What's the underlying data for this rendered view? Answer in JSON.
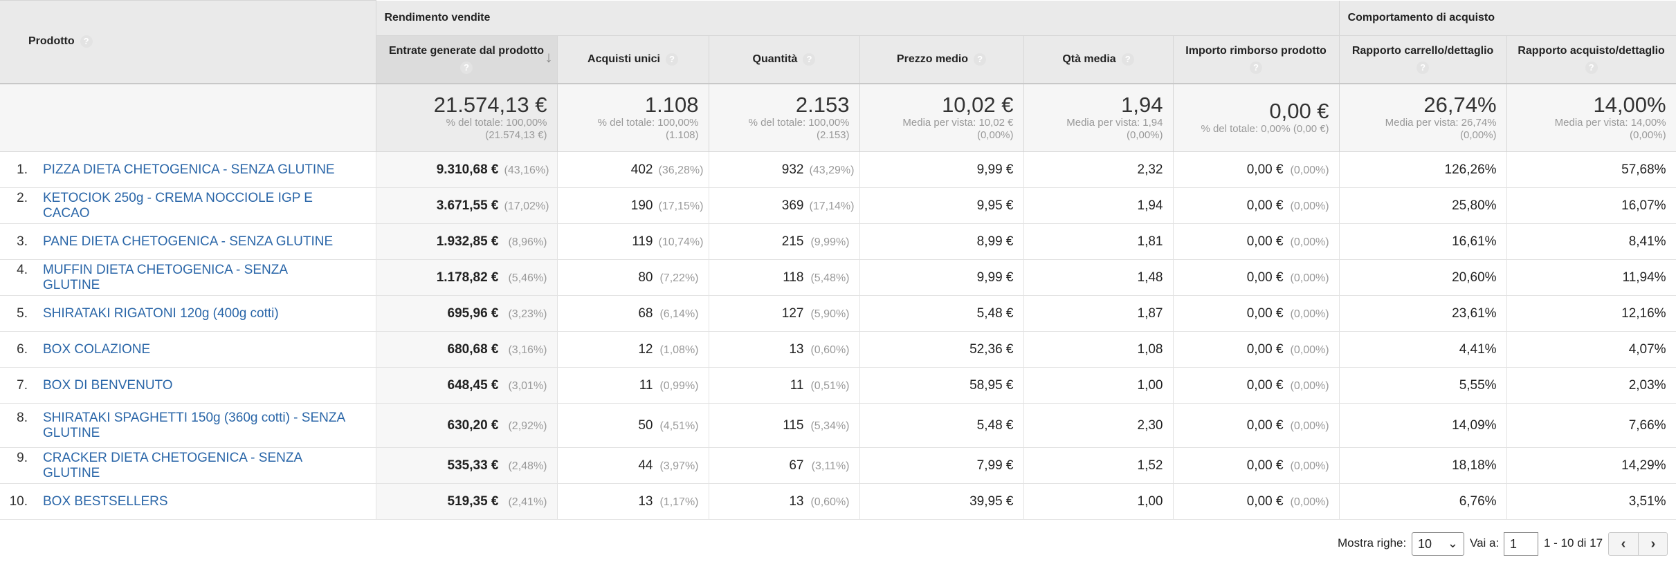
{
  "header": {
    "product_col": "Prodotto",
    "group_sales": "Rendimento vendite",
    "group_behavior": "Comportamento di acquisto",
    "help_symbol": "?",
    "sort_symbol": "↓",
    "columns": [
      "Entrate generate dal prodotto",
      "Acquisti unici",
      "Quantità",
      "Prezzo medio",
      "Qtà media",
      "Importo rimborso prodotto",
      "Rapporto carrello/dettaglio",
      "Rapporto acquisto/dettaglio"
    ]
  },
  "totals": [
    {
      "value": "21.574,13 €",
      "sub1": "% del totale: 100,00%",
      "sub2": "(21.574,13 €)"
    },
    {
      "value": "1.108",
      "sub1": "% del totale: 100,00%",
      "sub2": "(1.108)"
    },
    {
      "value": "2.153",
      "sub1": "% del totale: 100,00%",
      "sub2": "(2.153)"
    },
    {
      "value": "10,02 €",
      "sub1": "Media per vista: 10,02 €",
      "sub2": "(0,00%)"
    },
    {
      "value": "1,94",
      "sub1": "Media per vista: 1,94",
      "sub2": "(0,00%)"
    },
    {
      "value": "0,00 €",
      "sub1": "% del totale: 0,00% (0,00 €)",
      "sub2": ""
    },
    {
      "value": "26,74%",
      "sub1": "Media per vista: 26,74%",
      "sub2": "(0,00%)"
    },
    {
      "value": "14,00%",
      "sub1": "Media per vista: 14,00%",
      "sub2": "(0,00%)"
    }
  ],
  "rows": [
    {
      "idx": "1.",
      "name": "PIZZA DIETA CHETOGENICA - SENZA GLUTINE",
      "rev": "9.310,68 €",
      "rev_pct": "(43,16%)",
      "uniq": "402",
      "uniq_pct": "(36,28%)",
      "qty": "932",
      "qty_pct": "(43,29%)",
      "price": "9,99 €",
      "avgqty": "2,32",
      "refund": "0,00 €",
      "refund_pct": "(0,00%)",
      "cart": "126,26%",
      "buy": "57,68%"
    },
    {
      "idx": "2.",
      "name": "KETOCIOK 250g - CREMA NOCCIOLE IGP E CACAO",
      "rev": "3.671,55 €",
      "rev_pct": "(17,02%)",
      "uniq": "190",
      "uniq_pct": "(17,15%)",
      "qty": "369",
      "qty_pct": "(17,14%)",
      "price": "9,95 €",
      "avgqty": "1,94",
      "refund": "0,00 €",
      "refund_pct": "(0,00%)",
      "cart": "25,80%",
      "buy": "16,07%"
    },
    {
      "idx": "3.",
      "name": "PANE DIETA CHETOGENICA - SENZA GLUTINE",
      "rev": "1.932,85 €",
      "rev_pct": "(8,96%)",
      "uniq": "119",
      "uniq_pct": "(10,74%)",
      "qty": "215",
      "qty_pct": "(9,99%)",
      "price": "8,99 €",
      "avgqty": "1,81",
      "refund": "0,00 €",
      "refund_pct": "(0,00%)",
      "cart": "16,61%",
      "buy": "8,41%"
    },
    {
      "idx": "4.",
      "name": "MUFFIN DIETA CHETOGENICA - SENZA GLUTINE",
      "rev": "1.178,82 €",
      "rev_pct": "(5,46%)",
      "uniq": "80",
      "uniq_pct": "(7,22%)",
      "qty": "118",
      "qty_pct": "(5,48%)",
      "price": "9,99 €",
      "avgqty": "1,48",
      "refund": "0,00 €",
      "refund_pct": "(0,00%)",
      "cart": "20,60%",
      "buy": "11,94%"
    },
    {
      "idx": "5.",
      "name": "SHIRATAKI RIGATONI 120g (400g cotti)",
      "rev": "695,96 €",
      "rev_pct": "(3,23%)",
      "uniq": "68",
      "uniq_pct": "(6,14%)",
      "qty": "127",
      "qty_pct": "(5,90%)",
      "price": "5,48 €",
      "avgqty": "1,87",
      "refund": "0,00 €",
      "refund_pct": "(0,00%)",
      "cart": "23,61%",
      "buy": "12,16%"
    },
    {
      "idx": "6.",
      "name": "BOX COLAZIONE",
      "rev": "680,68 €",
      "rev_pct": "(3,16%)",
      "uniq": "12",
      "uniq_pct": "(1,08%)",
      "qty": "13",
      "qty_pct": "(0,60%)",
      "price": "52,36 €",
      "avgqty": "1,08",
      "refund": "0,00 €",
      "refund_pct": "(0,00%)",
      "cart": "4,41%",
      "buy": "4,07%"
    },
    {
      "idx": "7.",
      "name": "BOX DI BENVENUTO",
      "rev": "648,45 €",
      "rev_pct": "(3,01%)",
      "uniq": "11",
      "uniq_pct": "(0,99%)",
      "qty": "11",
      "qty_pct": "(0,51%)",
      "price": "58,95 €",
      "avgqty": "1,00",
      "refund": "0,00 €",
      "refund_pct": "(0,00%)",
      "cart": "5,55%",
      "buy": "2,03%"
    },
    {
      "idx": "8.",
      "name": "SHIRATAKI SPAGHETTI 150g (360g cotti) - SENZA GLUTINE",
      "rev": "630,20 €",
      "rev_pct": "(2,92%)",
      "uniq": "50",
      "uniq_pct": "(4,51%)",
      "qty": "115",
      "qty_pct": "(5,34%)",
      "price": "5,48 €",
      "avgqty": "2,30",
      "refund": "0,00 €",
      "refund_pct": "(0,00%)",
      "cart": "14,09%",
      "buy": "7,66%"
    },
    {
      "idx": "9.",
      "name": "CRACKER DIETA CHETOGENICA - SENZA GLUTINE",
      "rev": "535,33 €",
      "rev_pct": "(2,48%)",
      "uniq": "44",
      "uniq_pct": "(3,97%)",
      "qty": "67",
      "qty_pct": "(3,11%)",
      "price": "7,99 €",
      "avgqty": "1,52",
      "refund": "0,00 €",
      "refund_pct": "(0,00%)",
      "cart": "18,18%",
      "buy": "14,29%"
    },
    {
      "idx": "10.",
      "name": "BOX BESTSELLERS",
      "rev": "519,35 €",
      "rev_pct": "(2,41%)",
      "uniq": "13",
      "uniq_pct": "(1,17%)",
      "qty": "13",
      "qty_pct": "(0,60%)",
      "price": "39,95 €",
      "avgqty": "1,00",
      "refund": "0,00 €",
      "refund_pct": "(0,00%)",
      "cart": "6,76%",
      "buy": "3,51%"
    }
  ],
  "footer": {
    "show_rows_label": "Mostra righe:",
    "show_rows_value": "10",
    "goto_label": "Vai a:",
    "goto_value": "1",
    "range_text": "1 - 10 di 17",
    "prev_symbol": "‹",
    "next_symbol": "›"
  },
  "colors": {
    "link": "#2a66a8",
    "header_bg": "#eaeaea",
    "muted": "#999999"
  }
}
